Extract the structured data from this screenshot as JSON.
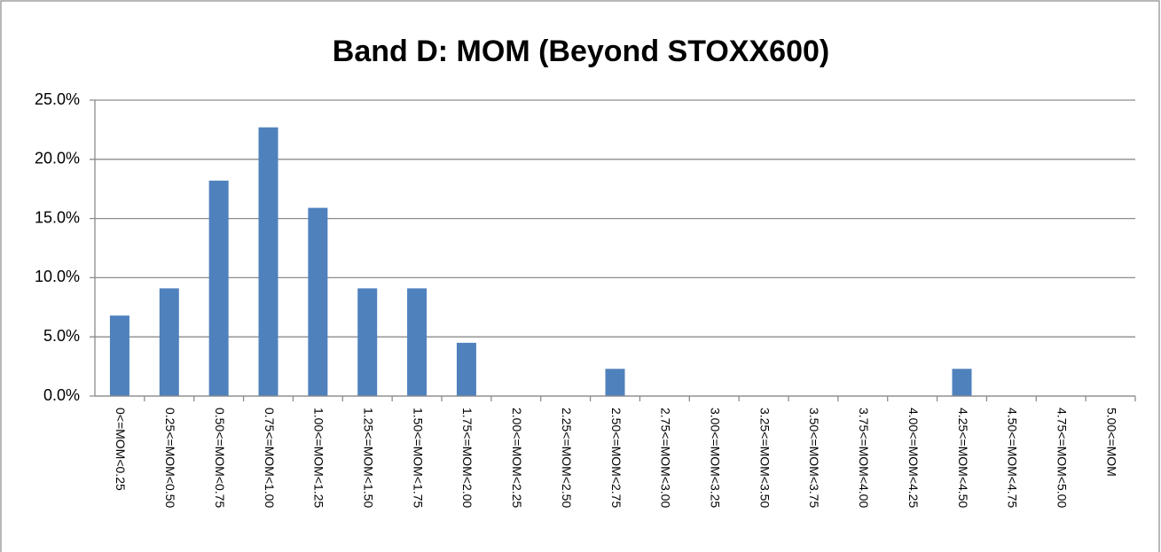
{
  "chart_data": {
    "type": "bar",
    "title": "Band D: MOM  (Beyond STOXX600)",
    "categories": [
      "0<=MOM<0.25",
      "0.25<=MOM<0.50",
      "0.50<=MOM<0.75",
      "0.75<=MOM<1.00",
      "1.00<=MOM<1.25",
      "1.25<=MOM<1.50",
      "1.50<=MOM<1.75",
      "1.75<=MOM<2.00",
      "2.00<=MOM<2.25",
      "2.25<=MOM<2.50",
      "2.50<=MOM<2.75",
      "2.75<=MOM<3.00",
      "3.00<=MOM<3.25",
      "3.25<=MOM<3.50",
      "3.50<=MOM<3.75",
      "3.75<=MOM<4.00",
      "4.00<=MOM<4.25",
      "4.25<=MOM<4.50",
      "4.50<=MOM<4.75",
      "4.75<=MOM<5.00",
      "5.00<=MOM"
    ],
    "values": [
      6.8,
      9.1,
      18.2,
      22.7,
      15.9,
      9.1,
      9.1,
      4.5,
      0,
      0,
      2.3,
      0,
      0,
      0,
      0,
      0,
      0,
      2.3,
      0,
      0,
      0
    ],
    "color": "#4f81bd",
    "ylim": [
      0,
      25
    ],
    "yticks": [
      {
        "value": 0,
        "label": "0.0%"
      },
      {
        "value": 5,
        "label": "5.0%"
      },
      {
        "value": 10,
        "label": "10.0%"
      },
      {
        "value": 15,
        "label": "15.0%"
      },
      {
        "value": 20,
        "label": "20.0%"
      },
      {
        "value": 25,
        "label": "25.0%"
      }
    ],
    "grid": true
  }
}
